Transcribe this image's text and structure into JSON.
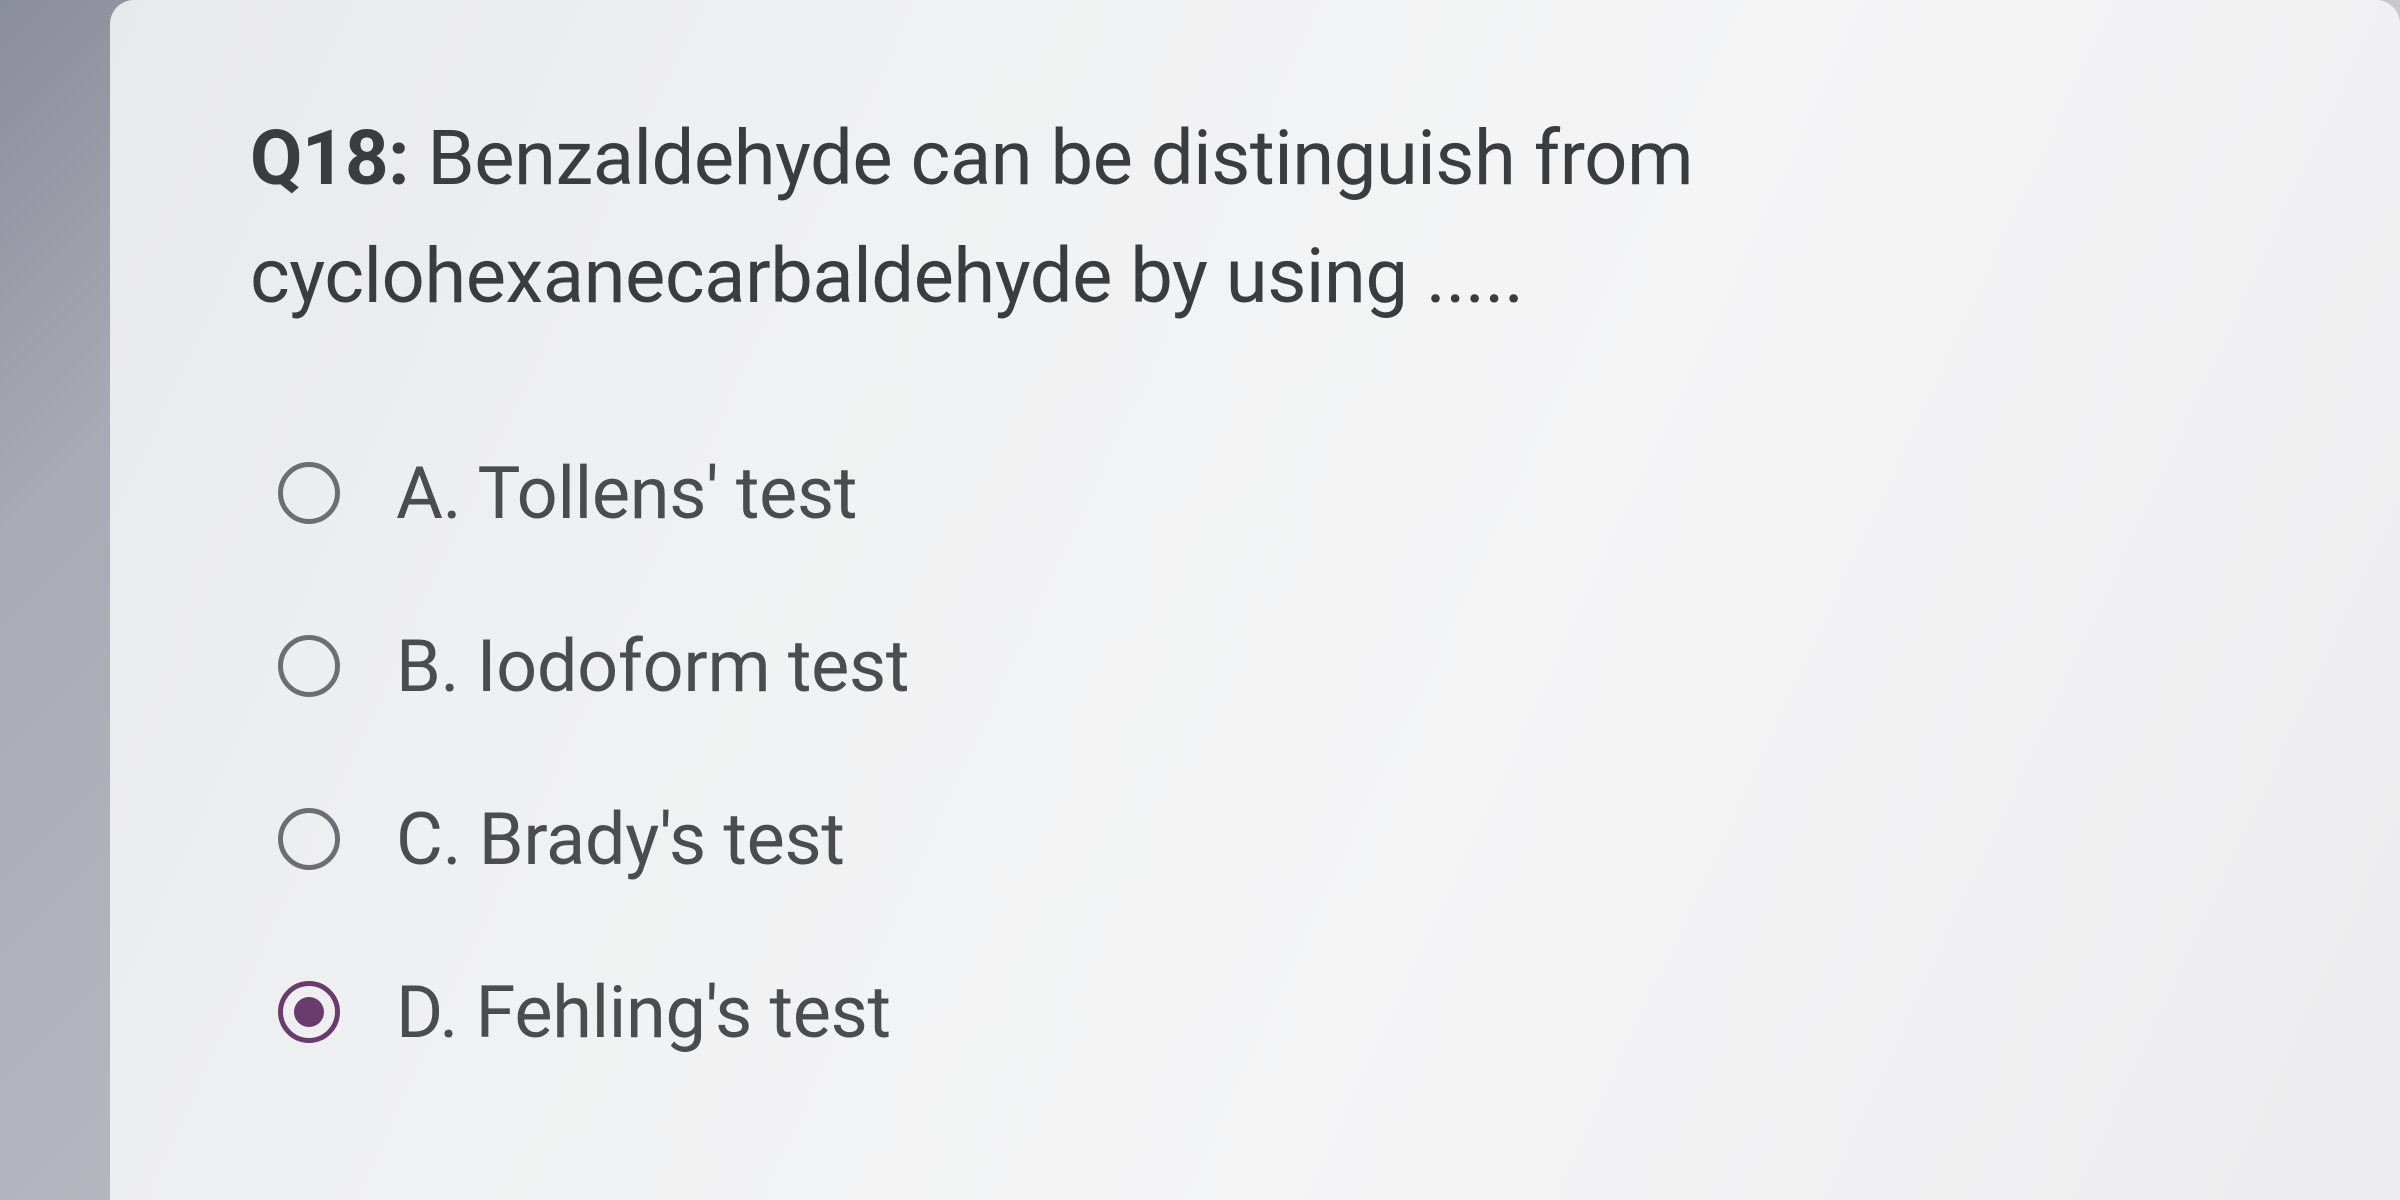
{
  "question": {
    "number": "Q18:",
    "text": "Benzaldehyde can be distinguish from cyclohexanecarbaldehyde by using ....."
  },
  "options": [
    {
      "label": "A. Tollens' test",
      "selected": false
    },
    {
      "label": "B. Iodoform test",
      "selected": false
    },
    {
      "label": "C. Brady's test",
      "selected": false
    },
    {
      "label": "D. Fehling's test",
      "selected": true
    }
  ],
  "colors": {
    "background_gradient_start": "#8a8d9a",
    "background_gradient_end": "#d8dadd",
    "card_bg": "#f0f1f2",
    "text_primary": "#3a3c3e",
    "text_option": "#4a4c4f",
    "radio_border": "#6b6e73",
    "radio_selected": "#6a3c6e"
  },
  "typography": {
    "question_fontsize": 76,
    "option_fontsize": 72,
    "number_weight": 700
  }
}
